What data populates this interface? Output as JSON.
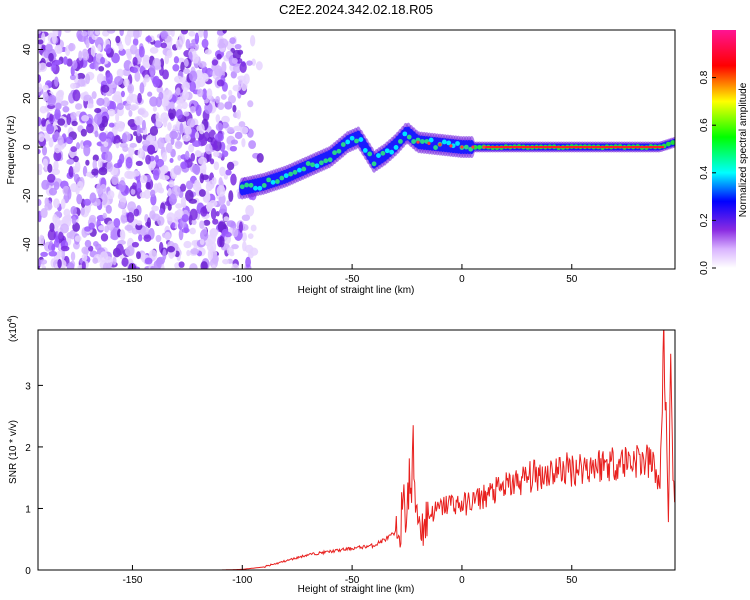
{
  "title": "C2E2.2024.342.02.18.R05",
  "chart_data": [
    {
      "type": "heatmap",
      "xlabel": "Height of straight line (km)",
      "ylabel": "Frequency (Hz)",
      "xlim": [
        -193,
        97
      ],
      "ylim": [
        -50,
        48
      ],
      "x_ticks": [
        -150,
        -100,
        -50,
        0,
        50
      ],
      "y_ticks": [
        -40,
        -20,
        0,
        20,
        40
      ],
      "colorbar": {
        "label": "Normalized spectral amplitude",
        "range": [
          0,
          1
        ],
        "ticks": [
          "0.0",
          "0.2",
          "0.4",
          "0.6",
          "0.8"
        ],
        "colors": [
          "#ffffff",
          "#8a2be2",
          "#0000ff",
          "#00ffff",
          "#00ff00",
          "#ffff00",
          "#ff0000",
          "#ff1493"
        ]
      },
      "noise_region": {
        "x": [
          -193,
          -90
        ],
        "level": 0.15
      },
      "ridge": [
        {
          "x": -100,
          "y": -17
        },
        {
          "x": -90,
          "y": -15
        },
        {
          "x": -80,
          "y": -12
        },
        {
          "x": -70,
          "y": -8
        },
        {
          "x": -60,
          "y": -4
        },
        {
          "x": -52,
          "y": 2
        },
        {
          "x": -47,
          "y": 4
        },
        {
          "x": -40,
          "y": -6
        },
        {
          "x": -35,
          "y": -3
        },
        {
          "x": -30,
          "y": 1
        },
        {
          "x": -25,
          "y": 6
        },
        {
          "x": -20,
          "y": 2
        },
        {
          "x": -10,
          "y": 1
        },
        {
          "x": 0,
          "y": 0
        },
        {
          "x": 10,
          "y": 0
        },
        {
          "x": 50,
          "y": 0
        },
        {
          "x": 90,
          "y": 0
        },
        {
          "x": 97,
          "y": 2
        }
      ]
    },
    {
      "type": "line",
      "xlabel": "Height of straight line (km)",
      "ylabel": "SNR (10 * v/v)",
      "scale_label": "(x10",
      "scale_exponent": "4",
      "xlim": [
        -193,
        97
      ],
      "ylim": [
        0,
        3.9
      ],
      "x_ticks": [
        -150,
        -100,
        -50,
        0,
        50
      ],
      "y_ticks": [
        0,
        1,
        2,
        3
      ],
      "color": "#e8201e",
      "series": [
        {
          "x": [
            -193,
            -110,
            -100,
            -90,
            -80,
            -70,
            -60,
            -50,
            -40,
            -30,
            -25,
            -22,
            -20,
            -18,
            -15,
            -10,
            -5,
            0,
            10,
            20,
            30,
            40,
            50,
            60,
            70,
            80,
            88,
            90,
            92,
            94,
            95,
            96,
            97
          ],
          "y": [
            0,
            0,
            0.01,
            0.05,
            0.15,
            0.25,
            0.3,
            0.35,
            0.4,
            0.6,
            1.1,
            1.6,
            0.9,
            0.7,
            0.9,
            1.0,
            1.1,
            1.05,
            1.2,
            1.35,
            1.5,
            1.6,
            1.65,
            1.7,
            1.75,
            1.8,
            1.7,
            1.2,
            3.9,
            0.7,
            3.05,
            1.8,
            1.1
          ]
        }
      ]
    }
  ]
}
